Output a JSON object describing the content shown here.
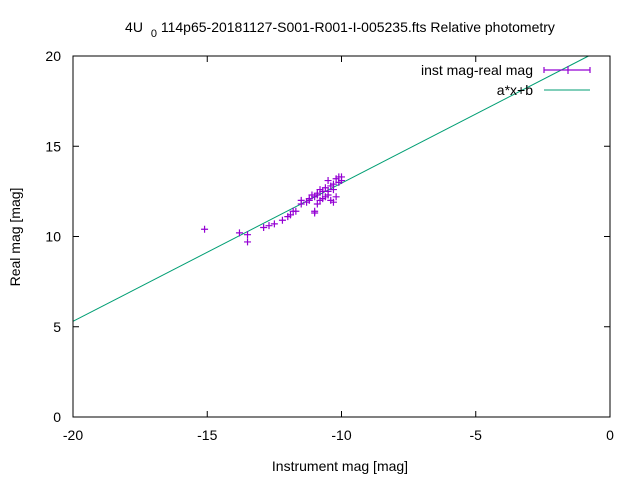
{
  "chart_data": {
    "type": "scatter",
    "title": {
      "prefix": "4U",
      "subscript": "0",
      "suffix": "114p65-20181127-S001-R001-I-005235.fts Relative photometry"
    },
    "xlabel": "Instrument mag [mag]",
    "ylabel": "Real mag [mag]",
    "xlim": [
      -20,
      0
    ],
    "ylim": [
      0,
      20
    ],
    "xticks": [
      -20,
      -15,
      -10,
      -5,
      0
    ],
    "yticks": [
      0,
      5,
      10,
      15,
      20
    ],
    "grid": false,
    "legend_position": "top-right",
    "series": [
      {
        "name": "inst mag-real mag",
        "kind": "points",
        "color": "#9400d3",
        "points": [
          [
            -15.1,
            10.4
          ],
          [
            -13.8,
            10.2
          ],
          [
            -13.5,
            10.1
          ],
          [
            -13.5,
            9.7
          ],
          [
            -12.9,
            10.5
          ],
          [
            -12.7,
            10.6
          ],
          [
            -12.5,
            10.7
          ],
          [
            -12.2,
            10.9
          ],
          [
            -12.0,
            11.1
          ],
          [
            -11.9,
            11.2
          ],
          [
            -11.8,
            11.4
          ],
          [
            -11.7,
            11.4
          ],
          [
            -11.5,
            11.8
          ],
          [
            -11.5,
            12.0
          ],
          [
            -11.3,
            11.9
          ],
          [
            -11.2,
            12.1
          ],
          [
            -11.1,
            12.3
          ],
          [
            -11.0,
            12.2
          ],
          [
            -11.0,
            11.3
          ],
          [
            -11.0,
            11.4
          ],
          [
            -10.9,
            12.4
          ],
          [
            -10.9,
            11.8
          ],
          [
            -10.8,
            12.6
          ],
          [
            -10.8,
            12.0
          ],
          [
            -10.7,
            12.5
          ],
          [
            -10.7,
            12.1
          ],
          [
            -10.6,
            12.7
          ],
          [
            -10.6,
            12.2
          ],
          [
            -10.5,
            13.1
          ],
          [
            -10.5,
            12.3
          ],
          [
            -10.4,
            12.8
          ],
          [
            -10.4,
            12.0
          ],
          [
            -10.3,
            12.9
          ],
          [
            -10.3,
            11.9
          ],
          [
            -10.2,
            13.2
          ],
          [
            -10.2,
            12.2
          ],
          [
            -10.1,
            13.3
          ],
          [
            -10.1,
            13.0
          ],
          [
            -10.0,
            13.3
          ],
          [
            -10.0,
            13.1
          ],
          [
            -11.2,
            12.0
          ],
          [
            -10.9,
            12.3
          ],
          [
            -10.5,
            12.5
          ],
          [
            -10.3,
            12.6
          ]
        ]
      },
      {
        "name": "a*x+b",
        "kind": "line",
        "color": "#009e73",
        "line": {
          "x0": -20,
          "y0": 5.3,
          "x1": -0.8,
          "y1": 20
        }
      }
    ]
  }
}
